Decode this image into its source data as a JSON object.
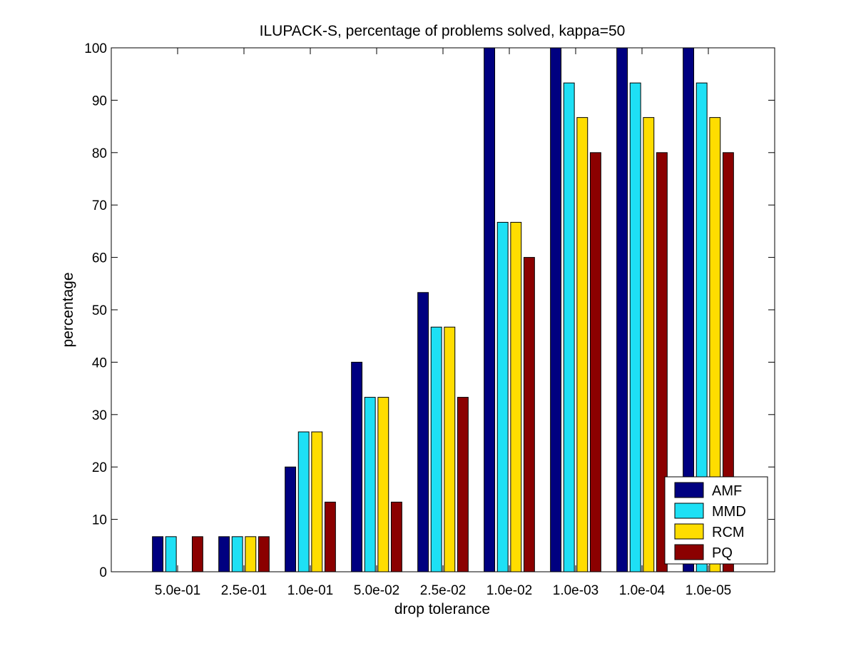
{
  "chart_data": {
    "type": "bar",
    "title": "ILUPACK-S, percentage of problems solved, kappa=50",
    "xlabel": "drop tolerance",
    "ylabel": "percentage",
    "ylim": [
      0,
      100
    ],
    "yticks": [
      0,
      10,
      20,
      30,
      40,
      50,
      60,
      70,
      80,
      90,
      100
    ],
    "grid": false,
    "legend_position": "bottom-right",
    "categories": [
      "5.0e-01",
      "2.5e-01",
      "1.0e-01",
      "5.0e-02",
      "2.5e-02",
      "1.0e-02",
      "1.0e-03",
      "1.0e-04",
      "1.0e-05"
    ],
    "series": [
      {
        "name": "AMF",
        "color": "#000080",
        "values": [
          6.7,
          6.7,
          20,
          40,
          53.3,
          100,
          100,
          100,
          100
        ]
      },
      {
        "name": "MMD",
        "color": "#1ee0f5",
        "values": [
          6.7,
          6.7,
          26.7,
          33.3,
          46.7,
          66.7,
          93.3,
          93.3,
          93.3
        ]
      },
      {
        "name": "RCM",
        "color": "#ffdd00",
        "values": [
          0,
          6.7,
          26.7,
          33.3,
          46.7,
          66.7,
          86.7,
          86.7,
          86.7
        ]
      },
      {
        "name": "PQ",
        "color": "#8b0000",
        "values": [
          6.7,
          6.7,
          13.3,
          13.3,
          33.3,
          60,
          80,
          80,
          80
        ]
      }
    ]
  }
}
